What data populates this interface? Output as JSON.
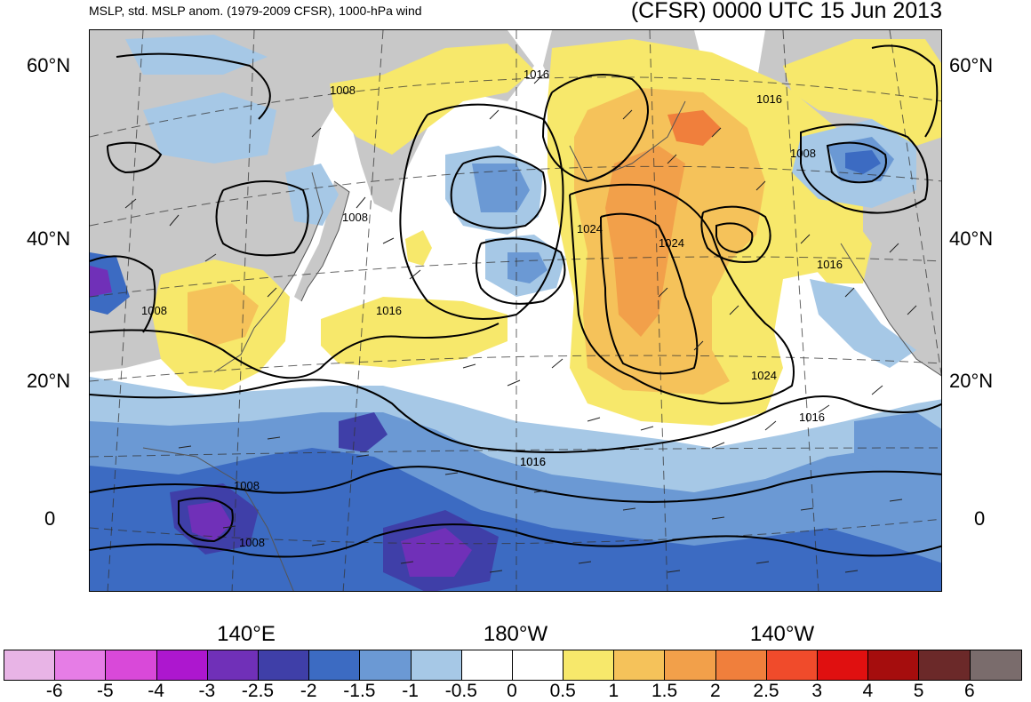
{
  "header": {
    "left_title": "MSLP, std. MSLP anom. (1979-2009 CFSR), 1000-hPa wind",
    "right_title": "(CFSR) 0000 UTC 15 Jun 2013"
  },
  "axes": {
    "lat_labels_left": [
      "60°N",
      "40°N",
      "20°N",
      "0"
    ],
    "lat_labels_right": [
      "60°N",
      "40°N",
      "20°N",
      "0"
    ],
    "lon_labels": [
      "140°E",
      "180°W",
      "140°W"
    ]
  },
  "contour_labels": [
    "1008",
    "1016",
    "1008",
    "1024",
    "1024",
    "1016",
    "1016",
    "1008",
    "1016",
    "1016",
    "1008",
    "1024",
    "1016",
    "1016",
    "1008",
    "1008"
  ],
  "colorbar": {
    "colors": [
      "#e8b4e6",
      "#e67de6",
      "#d949d9",
      "#ad17cf",
      "#7030b8",
      "#3f3fa8",
      "#3c6bc2",
      "#6b99d4",
      "#a6c8e6",
      "#ffffff",
      "#ffffff",
      "#f7e86b",
      "#f5c25a",
      "#f2a04a",
      "#f07f3c",
      "#f04b2b",
      "#e01010",
      "#a50d0d",
      "#6b2929",
      "#7a6c6c"
    ],
    "labels": [
      "-6",
      "-5",
      "-4",
      "-3",
      "-2.5",
      "-2",
      "-1.5",
      "-1",
      "-0.5",
      "0",
      "0.5",
      "1",
      "1.5",
      "2",
      "2.5",
      "3",
      "4",
      "5",
      "6"
    ]
  },
  "palette": {
    "land": "#c8c8c8",
    "ocean": "#ffffff",
    "neg_light": "#a6c8e6",
    "neg_mid": "#6b99d4",
    "neg_dark": "#3c6bc2",
    "neg_deep": "#3f3fa8",
    "neg_purple": "#7030b8",
    "pos_light": "#f7e86b",
    "pos_mid": "#f5c25a",
    "pos_dark": "#f2a04a",
    "pos_deep": "#f07f3c"
  }
}
